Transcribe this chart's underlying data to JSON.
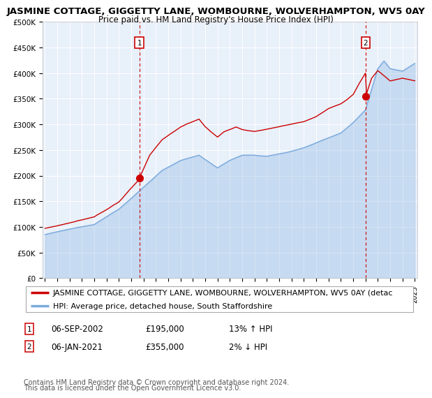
{
  "title": "JASMINE COTTAGE, GIGGETTY LANE, WOMBOURNE, WOLVERHAMPTON, WV5 0AY",
  "subtitle": "Price paid vs. HM Land Registry's House Price Index (HPI)",
  "x_start_year": 1995,
  "x_end_year": 2025,
  "y_min": 0,
  "y_max": 500000,
  "y_ticks": [
    0,
    50000,
    100000,
    150000,
    200000,
    250000,
    300000,
    350000,
    400000,
    450000,
    500000
  ],
  "y_tick_labels": [
    "£0",
    "£50K",
    "£100K",
    "£150K",
    "£200K",
    "£250K",
    "£300K",
    "£350K",
    "£400K",
    "£450K",
    "£500K"
  ],
  "hpi_color": "#7aaadd",
  "price_color": "#cc0000",
  "marker_color": "#cc0000",
  "bg_color": "#e8f0fa",
  "grid_color": "#ffffff",
  "vline_color": "#cc0000",
  "purchase1_year": 2002.67,
  "purchase1_price": 195000,
  "purchase1_label": "06-SEP-2002",
  "purchase1_pct": "13% ↑ HPI",
  "purchase2_year": 2021.02,
  "purchase2_price": 355000,
  "purchase2_label": "06-JAN-2021",
  "purchase2_pct": "2% ↓ HPI",
  "legend_line1": "JASMINE COTTAGE, GIGGETTY LANE, WOMBOURNE, WOLVERHAMPTON, WV5 0AY (detac",
  "legend_line2": "HPI: Average price, detached house, South Staffordshire",
  "footer1": "Contains HM Land Registry data © Crown copyright and database right 2024.",
  "footer2": "This data is licensed under the Open Government Licence v3.0.",
  "title_fontsize": 9.5,
  "subtitle_fontsize": 8.5,
  "tick_fontsize": 7.5,
  "legend_fontsize": 8,
  "table_fontsize": 8.5,
  "footer_fontsize": 7
}
